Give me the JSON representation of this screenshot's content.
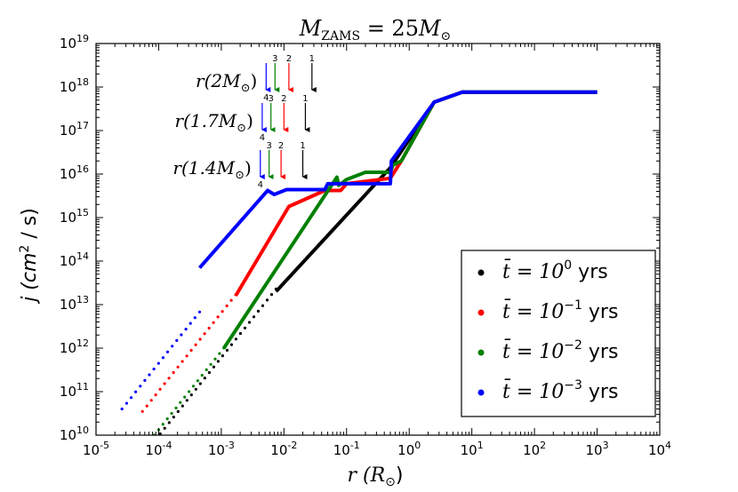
{
  "chart_data": {
    "type": "line",
    "title": "M_ZAMS = 25M⊙",
    "title_parts": {
      "base": "M",
      "sub": "ZAMS",
      "eq": " = 25",
      "base2": "M",
      "sub2": "⊙"
    },
    "xlabel": {
      "main": "r (R",
      "sub": "⊙",
      "close": ")"
    },
    "ylabel": {
      "main": "j (cm",
      "sup": "2",
      "tail": " / s)"
    },
    "xscale": "log",
    "yscale": "log",
    "xlim": [
      1e-05,
      10000.0
    ],
    "ylim": [
      10000000000.0,
      1e+19
    ],
    "xticks": [
      {
        "base": "10",
        "exp": "-5",
        "v": 1e-05
      },
      {
        "base": "10",
        "exp": "-4",
        "v": 0.0001
      },
      {
        "base": "10",
        "exp": "-3",
        "v": 0.001
      },
      {
        "base": "10",
        "exp": "-2",
        "v": 0.01
      },
      {
        "base": "10",
        "exp": "-1",
        "v": 0.1
      },
      {
        "base": "10",
        "exp": "0",
        "v": 1
      },
      {
        "base": "10",
        "exp": "1",
        "v": 10
      },
      {
        "base": "10",
        "exp": "2",
        "v": 100
      },
      {
        "base": "10",
        "exp": "3",
        "v": 1000
      },
      {
        "base": "10",
        "exp": "4",
        "v": 10000
      }
    ],
    "yticks": [
      {
        "base": "10",
        "exp": "10",
        "v": 10000000000.0
      },
      {
        "base": "10",
        "exp": "11",
        "v": 100000000000.0
      },
      {
        "base": "10",
        "exp": "12",
        "v": 1000000000000.0
      },
      {
        "base": "10",
        "exp": "13",
        "v": 10000000000000.0
      },
      {
        "base": "10",
        "exp": "14",
        "v": 100000000000000.0
      },
      {
        "base": "10",
        "exp": "15",
        "v": 1000000000000000.0
      },
      {
        "base": "10",
        "exp": "16",
        "v": 1e+16
      },
      {
        "base": "10",
        "exp": "17",
        "v": 1e+17
      },
      {
        "base": "10",
        "exp": "18",
        "v": 1e+18
      },
      {
        "base": "10",
        "exp": "19",
        "v": 1e+19
      }
    ],
    "series": [
      {
        "name": "t̄ = 10^0 yrs",
        "exp": "0",
        "color": "#000000",
        "dots": {
          "x_start": 9e-05,
          "x_end": 0.0075,
          "y_start": 8000000000.0,
          "slope": 1.8
        },
        "line": [
          [
            0.0075,
            20000000000000.0
          ],
          [
            0.5,
            1.4e+16
          ],
          [
            2.5,
            4.5e+17
          ],
          [
            7.0,
            7.6e+17
          ],
          [
            1000,
            7.6e+17
          ]
        ]
      },
      {
        "name": "t̄ = 10^-1 yrs",
        "exp": "-1",
        "color": "#ff0000",
        "dots": {
          "x_start": 5.5e-05,
          "x_end": 0.0017,
          "y_start": 35000000000.0,
          "slope": 1.8
        },
        "line": [
          [
            0.0017,
            16000000000000.0
          ],
          [
            0.012,
            1800000000000000.0
          ],
          [
            0.045,
            4200000000000000.0
          ],
          [
            0.08,
            4200000000000000.0
          ],
          [
            0.1,
            6000000000000000.0
          ],
          [
            0.5,
            8000000000000000.0
          ],
          [
            0.75,
            2e+16
          ],
          [
            2.5,
            4.5e+17
          ],
          [
            7.0,
            7.6e+17
          ],
          [
            1000,
            7.6e+17
          ]
        ]
      },
      {
        "name": "t̄ = 10^-2 yrs",
        "exp": "-2",
        "color": "#008000",
        "dots": {
          "x_start": 8.5e-05,
          "x_end": 0.0011,
          "y_start": 10000000000.0,
          "slope": 1.8
        },
        "line": [
          [
            0.0011,
            1000000000000.0
          ],
          [
            0.07,
            8500000000000000.0
          ],
          [
            0.075,
            5500000000000000.0
          ],
          [
            0.1,
            7500000000000000.0
          ],
          [
            0.2,
            1.1e+16
          ],
          [
            0.5,
            1.1e+16
          ],
          [
            0.55,
            1.6e+16
          ],
          [
            0.75,
            2e+16
          ],
          [
            2.5,
            4.5e+17
          ],
          [
            7.0,
            7.6e+17
          ],
          [
            1000,
            7.6e+17
          ]
        ]
      },
      {
        "name": "t̄ = 10^-3 yrs",
        "exp": "-3",
        "color": "#0000ff",
        "dots": {
          "x_start": 2.6e-05,
          "x_end": 0.00045,
          "y_start": 40000000000.0,
          "slope": 1.8
        },
        "line": [
          [
            0.00045,
            70000000000000.0
          ],
          [
            0.0055,
            4200000000000000.0
          ],
          [
            0.007,
            3400000000000000.0
          ],
          [
            0.011,
            4400000000000000.0
          ],
          [
            0.045,
            4400000000000000.0
          ],
          [
            0.05,
            6000000000000000.0
          ],
          [
            0.5,
            6000000000000000.0
          ],
          [
            0.52,
            2e+16
          ],
          [
            2.5,
            4.5e+17
          ],
          [
            7.0,
            7.6e+17
          ],
          [
            1000,
            7.6e+17
          ]
        ]
      }
    ],
    "legend": {
      "placement": "bottom-right",
      "entries": [
        {
          "pre": "t̄ = 10",
          "exp": "0",
          "post": " yrs"
        },
        {
          "pre": "t̄ = 10",
          "exp": "−1",
          "post": " yrs"
        },
        {
          "pre": "t̄ = 10",
          "exp": "−2",
          "post": " yrs"
        },
        {
          "pre": "t̄ = 10",
          "exp": "−3",
          "post": " yrs"
        }
      ]
    },
    "annotations": [
      {
        "label": "r(2M⊙)",
        "lab_main": "r(2M",
        "lab_sub": "⊙",
        "lab_close": ")",
        "y_level": 5e+17,
        "arrows": [
          {
            "n": "4",
            "x": 0.0052,
            "color": "#0000ff"
          },
          {
            "n": "3",
            "x": 0.0072,
            "color": "#008000"
          },
          {
            "n": "2",
            "x": 0.012,
            "color": "#ff0000"
          },
          {
            "n": "1",
            "x": 0.028,
            "color": "#000000"
          }
        ]
      },
      {
        "label": "r(1.7M⊙)",
        "lab_main": "r(1.7M",
        "lab_sub": "⊙",
        "lab_close": ")",
        "y_level": 5e+16,
        "arrows": [
          {
            "n": "4",
            "x": 0.0045,
            "color": "#0000ff"
          },
          {
            "n": "3",
            "x": 0.0062,
            "color": "#008000"
          },
          {
            "n": "2",
            "x": 0.01,
            "color": "#ff0000"
          },
          {
            "n": "1",
            "x": 0.022,
            "color": "#000000"
          }
        ]
      },
      {
        "label": "r(1.4M⊙)",
        "lab_main": "r(1.4M",
        "lab_sub": "⊙",
        "lab_close": ")",
        "y_level": 5000000000000000.0,
        "arrows": [
          {
            "n": "4",
            "x": 0.0042,
            "color": "#0000ff"
          },
          {
            "n": "3",
            "x": 0.0058,
            "color": "#008000"
          },
          {
            "n": "2",
            "x": 0.009,
            "color": "#ff0000"
          },
          {
            "n": "1",
            "x": 0.02,
            "color": "#000000"
          }
        ]
      }
    ]
  }
}
